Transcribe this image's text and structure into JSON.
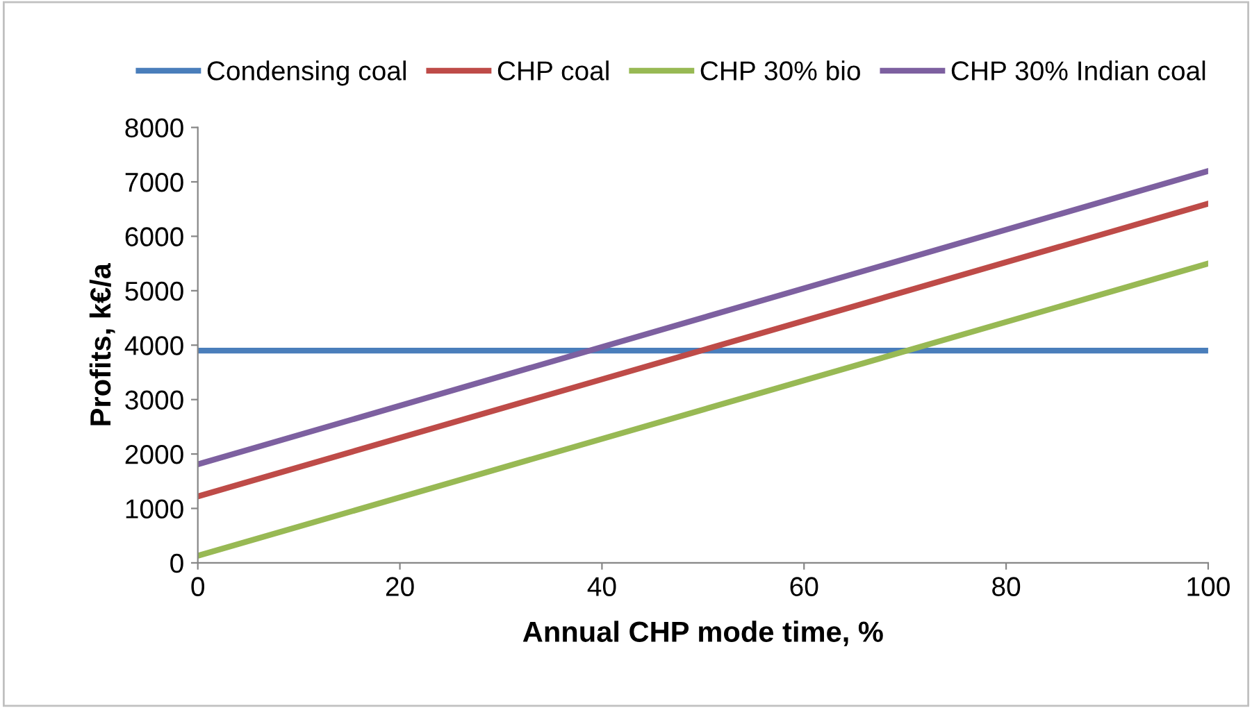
{
  "chart_data": {
    "type": "line",
    "xlabel": "Annual CHP mode time, %",
    "ylabel": "Profits, k€/a",
    "x": [
      0,
      100
    ],
    "series": [
      {
        "name": "Condensing coal",
        "color": "#4a7ebb",
        "values": [
          3900,
          3900
        ]
      },
      {
        "name": "CHP coal",
        "color": "#be4b48",
        "values": [
          1220,
          6600
        ]
      },
      {
        "name": "CHP 30% bio",
        "color": "#98b954",
        "values": [
          130,
          5500
        ]
      },
      {
        "name": "CHP 30% Indian coal",
        "color": "#7d60a0",
        "values": [
          1810,
          7200
        ]
      }
    ],
    "xlim": [
      0,
      100
    ],
    "xticks": [
      0,
      20,
      40,
      60,
      80,
      100
    ],
    "ylim": [
      0,
      8000
    ],
    "yticks": [
      0,
      1000,
      2000,
      3000,
      4000,
      5000,
      6000,
      7000,
      8000
    ],
    "grid": false,
    "legend": "top",
    "marker": "none",
    "line_style": "solid"
  }
}
